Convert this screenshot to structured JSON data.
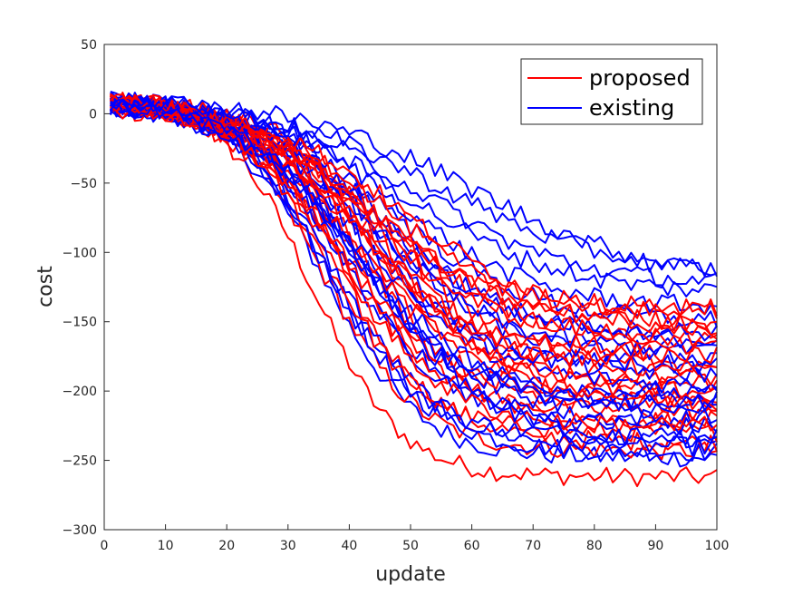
{
  "chart_data": {
    "type": "line",
    "xlabel": "update",
    "ylabel": "cost",
    "xlim": [
      0,
      100
    ],
    "ylim": [
      -300,
      50
    ],
    "xticks": [
      0,
      10,
      20,
      30,
      40,
      50,
      60,
      70,
      80,
      90,
      100
    ],
    "yticks": [
      50,
      0,
      -50,
      -100,
      -150,
      -200,
      -250,
      -300
    ],
    "grid": false,
    "legend_position": "top-right",
    "legend": [
      {
        "name": "proposed",
        "color": "#ff0000"
      },
      {
        "name": "existing",
        "color": "#0000ff"
      }
    ],
    "note": "Approximately 25 noisy runs per method; each run starts near 0 at update 1 and decreases toward a final value at update 100.",
    "series_groups": [
      {
        "name": "proposed",
        "color": "#ff0000",
        "runs": [
          {
            "start": 8,
            "mid": 34,
            "rate": 0.14,
            "final": -262
          },
          {
            "start": 6,
            "mid": 36,
            "rate": 0.13,
            "final": -243
          },
          {
            "start": 9,
            "mid": 38,
            "rate": 0.12,
            "final": -237
          },
          {
            "start": 5,
            "mid": 37,
            "rate": 0.13,
            "final": -230
          },
          {
            "start": 7,
            "mid": 40,
            "rate": 0.11,
            "final": -222
          },
          {
            "start": 4,
            "mid": 39,
            "rate": 0.12,
            "final": -215
          },
          {
            "start": 10,
            "mid": 41,
            "rate": 0.11,
            "final": -210
          },
          {
            "start": 6,
            "mid": 42,
            "rate": 0.1,
            "final": -205
          },
          {
            "start": 8,
            "mid": 38,
            "rate": 0.12,
            "final": -200
          },
          {
            "start": 3,
            "mid": 43,
            "rate": 0.1,
            "final": -195
          },
          {
            "start": 7,
            "mid": 40,
            "rate": 0.11,
            "final": -190
          },
          {
            "start": 9,
            "mid": 44,
            "rate": 0.1,
            "final": -185
          },
          {
            "start": 5,
            "mid": 42,
            "rate": 0.11,
            "final": -180
          },
          {
            "start": 6,
            "mid": 45,
            "rate": 0.1,
            "final": -175
          },
          {
            "start": 8,
            "mid": 41,
            "rate": 0.11,
            "final": -170
          },
          {
            "start": 4,
            "mid": 46,
            "rate": 0.09,
            "final": -165
          },
          {
            "start": 7,
            "mid": 43,
            "rate": 0.1,
            "final": -160
          },
          {
            "start": 9,
            "mid": 47,
            "rate": 0.09,
            "final": -155
          },
          {
            "start": 5,
            "mid": 44,
            "rate": 0.1,
            "final": -150
          },
          {
            "start": 6,
            "mid": 48,
            "rate": 0.09,
            "final": -145
          },
          {
            "start": 8,
            "mid": 42,
            "rate": 0.1,
            "final": -140
          },
          {
            "start": 10,
            "mid": 45,
            "rate": 0.09,
            "final": -210
          },
          {
            "start": 3,
            "mid": 39,
            "rate": 0.12,
            "final": -225
          }
        ]
      },
      {
        "name": "existing",
        "color": "#0000ff",
        "runs": [
          {
            "start": 6,
            "mid": 36,
            "rate": 0.13,
            "final": -248
          },
          {
            "start": 8,
            "mid": 37,
            "rate": 0.12,
            "final": -244
          },
          {
            "start": 5,
            "mid": 38,
            "rate": 0.12,
            "final": -240
          },
          {
            "start": 9,
            "mid": 36,
            "rate": 0.13,
            "final": -232
          },
          {
            "start": 4,
            "mid": 40,
            "rate": 0.11,
            "final": -226
          },
          {
            "start": 7,
            "mid": 39,
            "rate": 0.12,
            "final": -220
          },
          {
            "start": 10,
            "mid": 41,
            "rate": 0.11,
            "final": -214
          },
          {
            "start": 6,
            "mid": 42,
            "rate": 0.1,
            "final": -208
          },
          {
            "start": 8,
            "mid": 40,
            "rate": 0.11,
            "final": -202
          },
          {
            "start": 3,
            "mid": 43,
            "rate": 0.1,
            "final": -196
          },
          {
            "start": 7,
            "mid": 44,
            "rate": 0.1,
            "final": -188
          },
          {
            "start": 9,
            "mid": 42,
            "rate": 0.11,
            "final": -182
          },
          {
            "start": 5,
            "mid": 45,
            "rate": 0.1,
            "final": -176
          },
          {
            "start": 6,
            "mid": 44,
            "rate": 0.1,
            "final": -170
          },
          {
            "start": 8,
            "mid": 46,
            "rate": 0.09,
            "final": -164
          },
          {
            "start": 4,
            "mid": 45,
            "rate": 0.1,
            "final": -158
          },
          {
            "start": 7,
            "mid": 47,
            "rate": 0.09,
            "final": -150
          },
          {
            "start": 9,
            "mid": 48,
            "rate": 0.09,
            "final": -140
          },
          {
            "start": 5,
            "mid": 50,
            "rate": 0.08,
            "final": -130
          },
          {
            "start": 6,
            "mid": 52,
            "rate": 0.08,
            "final": -124
          },
          {
            "start": 8,
            "mid": 55,
            "rate": 0.07,
            "final": -118
          },
          {
            "start": 10,
            "mid": 60,
            "rate": 0.07,
            "final": -120
          },
          {
            "start": 4,
            "mid": 41,
            "rate": 0.11,
            "final": -210
          },
          {
            "start": 7,
            "mid": 43,
            "rate": 0.1,
            "final": -236
          }
        ]
      }
    ]
  }
}
